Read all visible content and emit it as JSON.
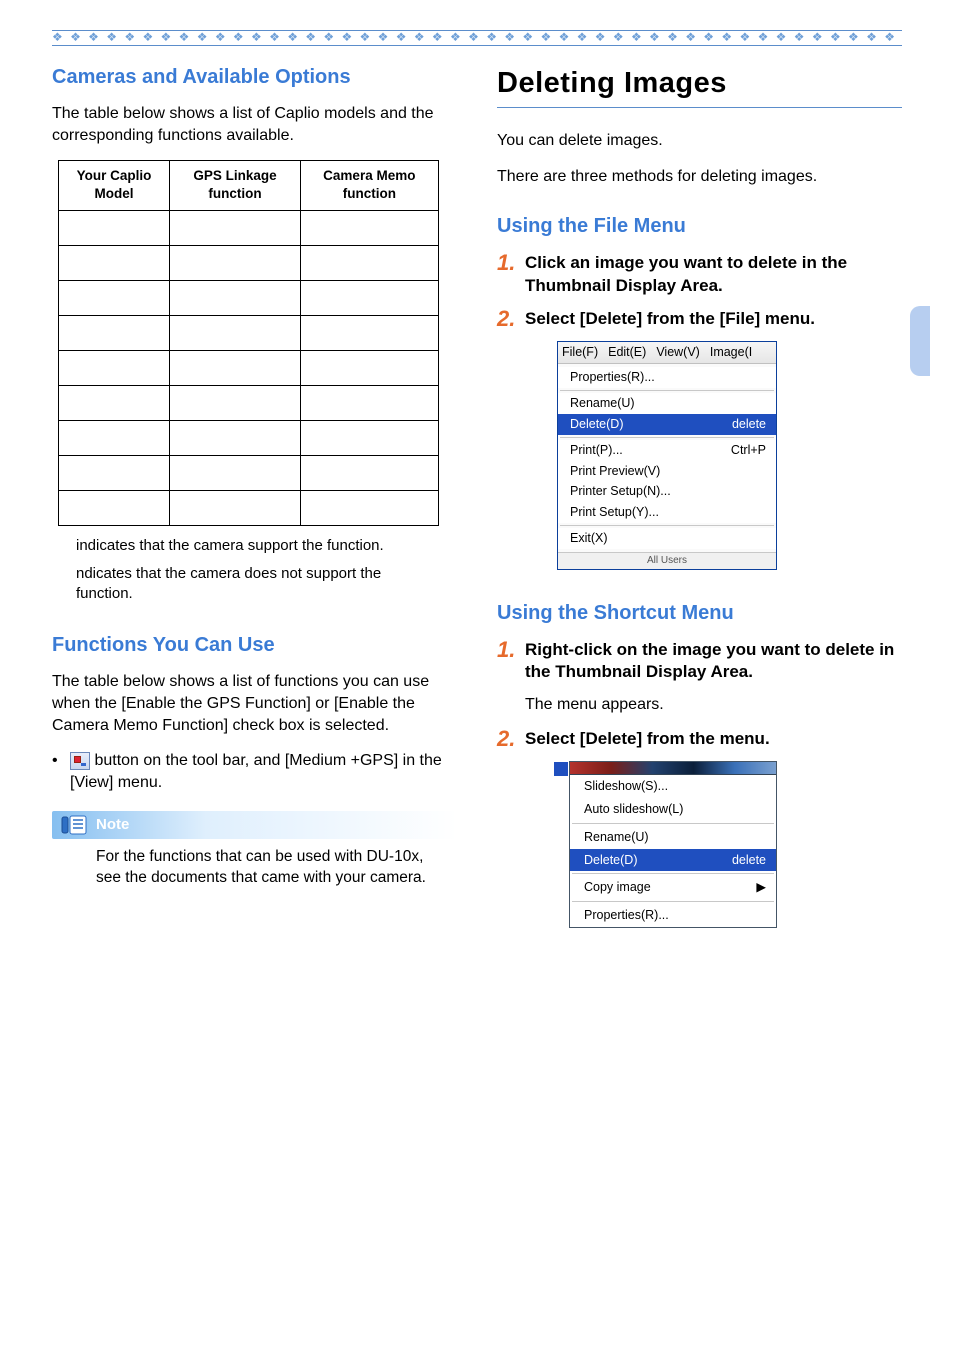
{
  "colors": {
    "accent_blue": "#3a7bd5",
    "rule_blue": "#5b8dcb",
    "step_orange": "#e66a2c",
    "menu_highlight": "#1f4fbf"
  },
  "border_glyphs": "❖ ❖ ❖ ❖ ❖ ❖ ❖ ❖ ❖ ❖ ❖ ❖ ❖ ❖ ❖ ❖ ❖ ❖ ❖ ❖ ❖ ❖ ❖ ❖ ❖ ❖ ❖ ❖ ❖ ❖ ❖ ❖ ❖ ❖ ❖ ❖ ❖ ❖ ❖ ❖ ❖ ❖ ❖ ❖ ❖ ❖ ❖ ❖ ❖ ❖ ❖ ❖ ❖ ❖ ❖ ❖",
  "left": {
    "h_cameras": "Cameras and Available Options",
    "p_cameras": "The table below shows a list of Caplio models and the corresponding functions available.",
    "table": {
      "headers": [
        "Your Caplio Model",
        "GPS Linkage function",
        "Camera Memo function"
      ],
      "row_count": 9
    },
    "foot1": "indicates that the camera support the function.",
    "foot2": " ndicates that the camera does not support the function.",
    "h_functions": "Functions You Can Use",
    "p_functions": "The table below shows a list of functions you can use when the [Enable the GPS Function] or [Enable the Camera Memo Function] check box is selected.",
    "bullet_text": " button on the tool bar, and [Medium +GPS] in the [View] menu.",
    "note_label": "Note",
    "note_text": "For the functions that can be used with DU-10x, see the documents that came with your camera."
  },
  "right": {
    "h_deleting": "Deleting Images",
    "p_del1": "You can delete images.",
    "p_del2": "There are three methods for deleting images.",
    "h_filemenu": "Using the File Menu",
    "step1_num": "1.",
    "step1_text": "Click an image you want to delete in the Thumbnail Display Area.",
    "step2_num": "2.",
    "step2_text": "Select [Delete] from the [File] menu.",
    "filemenu": {
      "bar": [
        "File(F)",
        "Edit(E)",
        "View(V)",
        "Image(I"
      ],
      "items": [
        {
          "label": "Properties(R)...",
          "shortcut": "",
          "sel": false
        },
        {
          "sep": true
        },
        {
          "label": "Rename(U)",
          "shortcut": "",
          "sel": false
        },
        {
          "label": "Delete(D)",
          "shortcut": "delete",
          "sel": true
        },
        {
          "sep": true
        },
        {
          "label": "Print(P)...",
          "shortcut": "Ctrl+P",
          "sel": false
        },
        {
          "label": "Print Preview(V)",
          "shortcut": "",
          "sel": false
        },
        {
          "label": "Printer Setup(N)...",
          "shortcut": "",
          "sel": false
        },
        {
          "label": "Print Setup(Y)...",
          "shortcut": "",
          "sel": false
        },
        {
          "sep": true
        },
        {
          "label": "Exit(X)",
          "shortcut": "",
          "sel": false
        }
      ],
      "footer": "All Users"
    },
    "h_shortcut": "Using the Shortcut Menu",
    "sc_step1_num": "1.",
    "sc_step1_text": "Right-click on the image you want to delete in the Thumbnail Display Area.",
    "sc_step1_sub": "The menu appears.",
    "sc_step2_num": "2.",
    "sc_step2_text": "Select [Delete] from the menu.",
    "ctxmenu": {
      "items": [
        {
          "label": "Slideshow(S)...",
          "shortcut": "",
          "sel": false
        },
        {
          "label": "Auto slideshow(L)",
          "shortcut": "",
          "sel": false
        },
        {
          "sep": true
        },
        {
          "label": "Rename(U)",
          "shortcut": "",
          "sel": false
        },
        {
          "label": "Delete(D)",
          "shortcut": "delete",
          "sel": true
        },
        {
          "sep": true
        },
        {
          "label": "Copy image",
          "shortcut": "▶",
          "sel": false
        },
        {
          "sep": true
        },
        {
          "label": "Properties(R)...",
          "shortcut": "",
          "sel": false
        }
      ]
    }
  }
}
